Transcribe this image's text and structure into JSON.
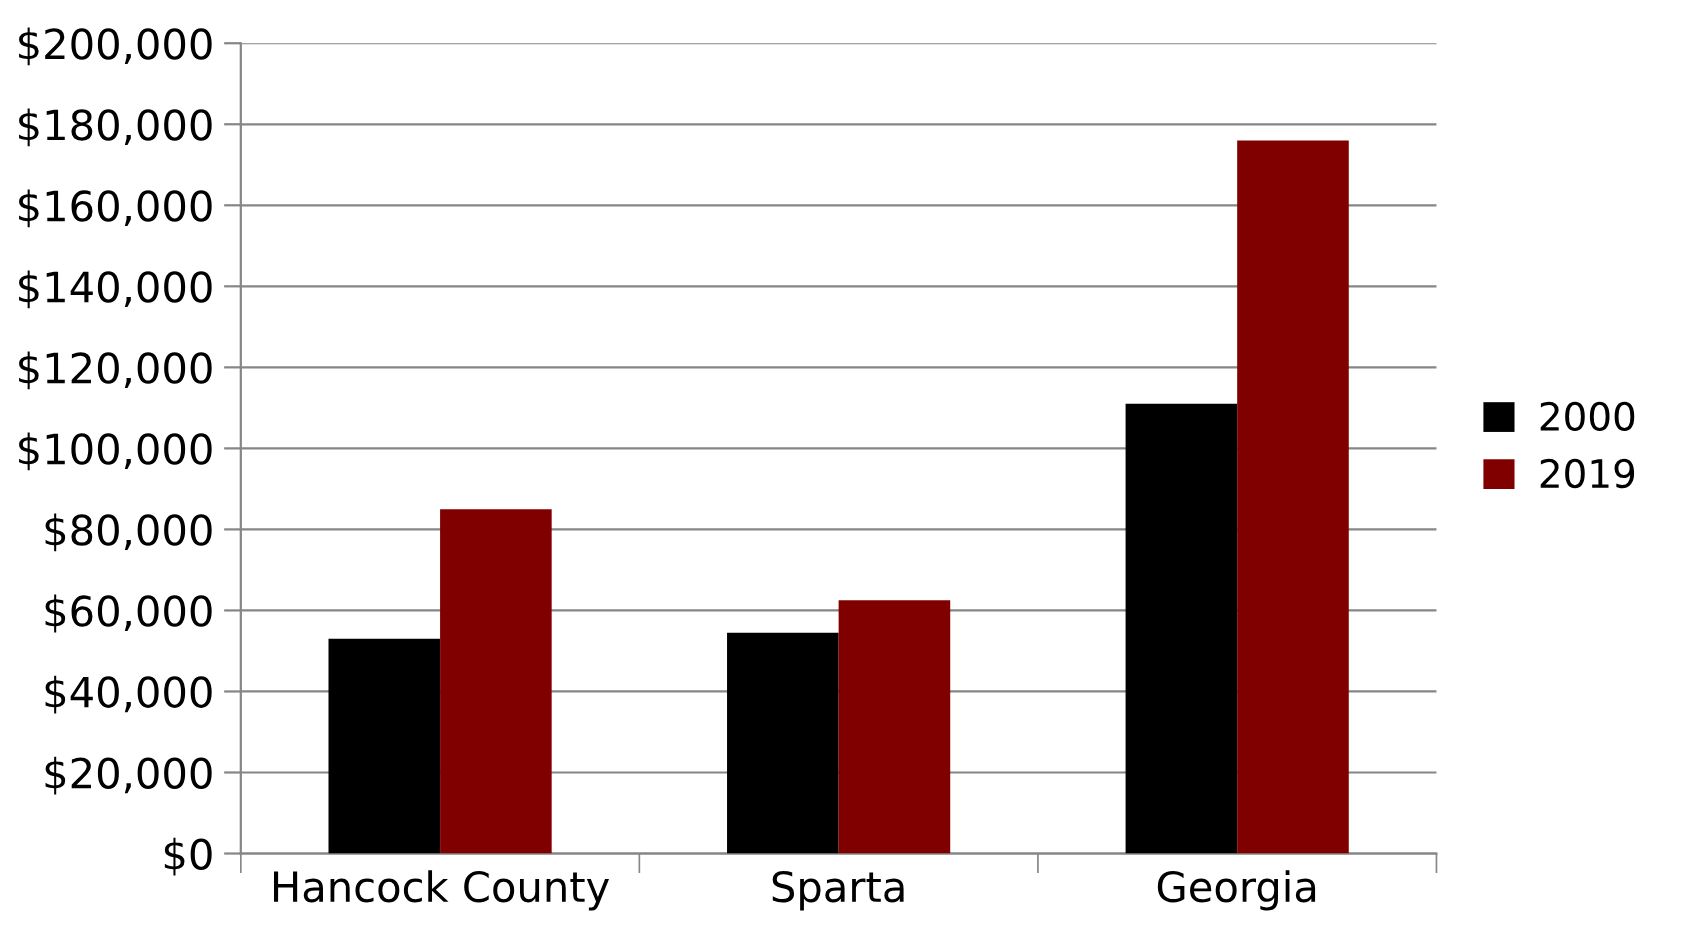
{
  "chart_data": {
    "type": "bar",
    "categories": [
      "Hancock County",
      "Sparta",
      "Georgia"
    ],
    "series": [
      {
        "name": "2000",
        "color": "#000000",
        "values": [
          53000,
          54500,
          111000
        ]
      },
      {
        "name": "2019",
        "color": "#800000",
        "values": [
          85000,
          62500,
          176000
        ]
      }
    ],
    "ylim": [
      0,
      200000
    ],
    "yticks": [
      {
        "value": 0,
        "label": "$0"
      },
      {
        "value": 20000,
        "label": "$20,000"
      },
      {
        "value": 40000,
        "label": "$40,000"
      },
      {
        "value": 60000,
        "label": "$60,000"
      },
      {
        "value": 80000,
        "label": "$80,000"
      },
      {
        "value": 100000,
        "label": "$100,000"
      },
      {
        "value": 120000,
        "label": "$120,000"
      },
      {
        "value": 140000,
        "label": "$140,000"
      },
      {
        "value": 160000,
        "label": "$160,000"
      },
      {
        "value": 180000,
        "label": "$180,000"
      },
      {
        "value": 200000,
        "label": "$200,000"
      }
    ],
    "grid": "y",
    "legend": "right"
  }
}
